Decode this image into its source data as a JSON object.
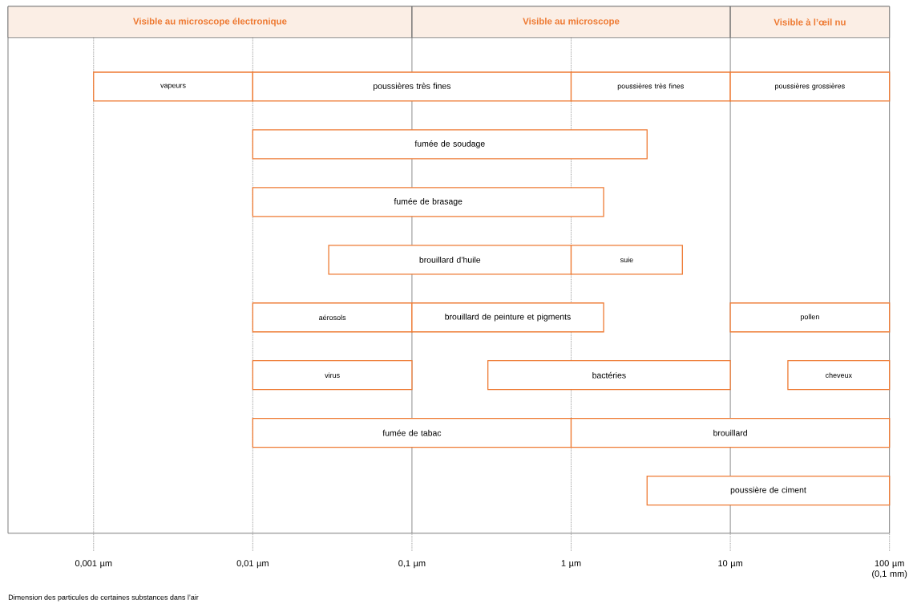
{
  "chart_data": {
    "type": "bar",
    "orientation": "horizontal",
    "log": "x",
    "grid": false,
    "categories": [
      null,
      null,
      null,
      null,
      null,
      null,
      null,
      null
    ],
    "xlim": [
      0.00029,
      100
    ],
    "xticks": [
      {
        "value": 0.001,
        "label": "0,001 µm"
      },
      {
        "value": 0.01,
        "label": "0,01 µm"
      },
      {
        "value": 0.1,
        "label": "0,1 µm"
      },
      {
        "value": 1,
        "label": "1 µm"
      },
      {
        "value": 10,
        "label": "10 µm"
      },
      {
        "value": 100,
        "label": "100 µm (0,1 mm)"
      }
    ],
    "series": [
      {
        "color": "#ee7a33",
        "base": [
          0.001,
          0.01,
          0.01,
          0.03,
          0.01,
          0.01,
          0.01,
          3
        ],
        "values": [
          0.009,
          2.99,
          1.59,
          0.97,
          0.09,
          0.09,
          0.99,
          97
        ],
        "value_labels": [
          "vapeurs",
          "fumée de soudage",
          "fumée de brasage",
          "brouillard d’huile",
          "aérosols",
          "virus",
          "fumée de tabac",
          "poussière de ciment"
        ]
      },
      {
        "color": "#ee7a33",
        "base": [
          0.01,
          null,
          null,
          1,
          0.1,
          0.3,
          1,
          null
        ],
        "values": [
          0.99,
          null,
          null,
          4,
          1.5,
          9.7,
          99,
          null
        ],
        "value_labels": [
          "poussières très fines",
          null,
          null,
          "suie",
          "brouillard de peinture et pigments",
          "bactéries",
          "brouillard",
          null
        ]
      },
      {
        "color": "#ee7a33",
        "base": [
          1,
          null,
          null,
          null,
          10,
          23,
          null,
          null
        ],
        "values": [
          9,
          null,
          null,
          null,
          90,
          77,
          null,
          null
        ],
        "value_labels": [
          "poussières très fines",
          null,
          null,
          null,
          "pollen",
          "cheveux",
          null,
          null
        ]
      },
      {
        "color": "#ee7a33",
        "base": [
          10,
          null,
          null,
          null,
          null,
          null,
          null,
          null
        ],
        "values": [
          90,
          null,
          null,
          null,
          null,
          null,
          null,
          null
        ],
        "value_labels": [
          "poussières grossières",
          null,
          null,
          null,
          null,
          null,
          null,
          null
        ]
      }
    ],
    "bands": [
      {
        "axis": "x",
        "from": 0.00029,
        "to": 0.1,
        "label": "Visible au microscope électronique",
        "color": "#fbeee5"
      },
      {
        "axis": "x",
        "from": 0.1,
        "to": 10,
        "label": "Visible au microscope",
        "color": "#fbeee5"
      },
      {
        "axis": "x",
        "from": 10,
        "to": 100,
        "label": "Visible à l’œil nu",
        "color": "#fbeee5"
      }
    ],
    "ref_lines": [
      {
        "axis": "x",
        "value": 0.001,
        "line_style": "dotted"
      },
      {
        "axis": "x",
        "value": 0.01,
        "line_style": "dotted"
      },
      {
        "axis": "x",
        "value": 0.1,
        "line_style": "solid"
      },
      {
        "axis": "x",
        "value": 1,
        "line_style": "dotted"
      },
      {
        "axis": "x",
        "value": 10,
        "line_style": "solid"
      }
    ],
    "annotations": [
      "Dimension des particules de certaines substances dans l’air"
    ]
  }
}
